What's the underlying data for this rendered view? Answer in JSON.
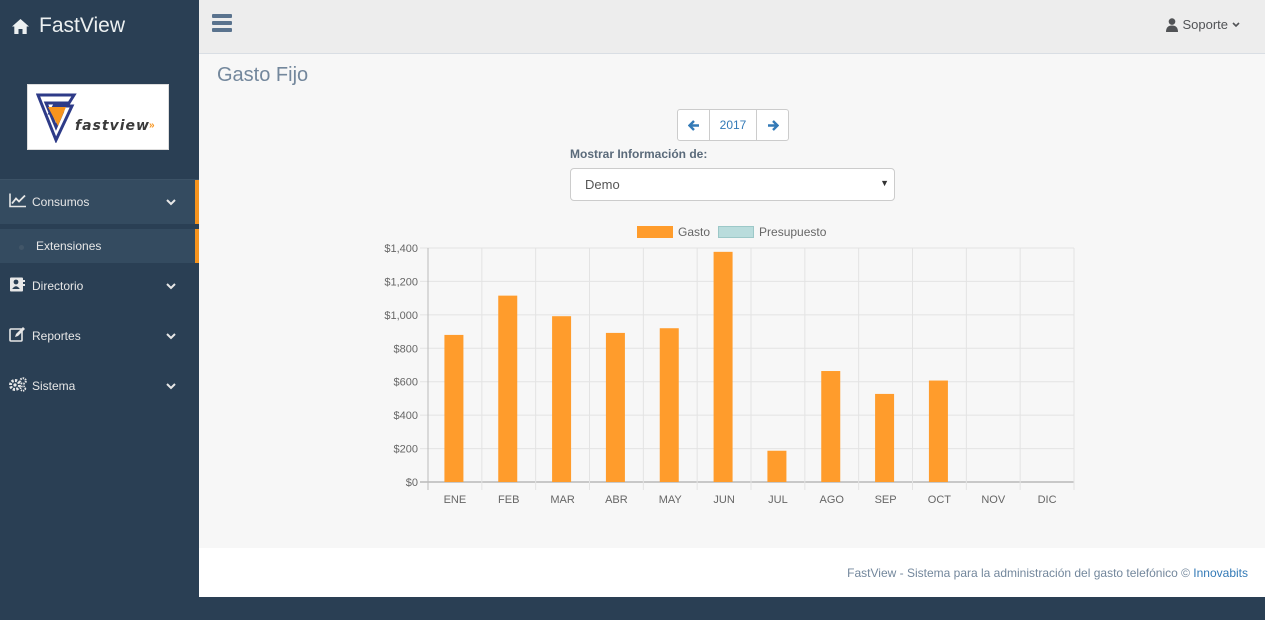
{
  "brand": {
    "title": "FastView"
  },
  "logo": {
    "text": "fastview",
    "arrows": "»"
  },
  "sidebar": {
    "items": [
      {
        "label": "Consumos",
        "icon": "chart-line-icon"
      },
      {
        "label": "Directorio",
        "icon": "address-book-icon"
      },
      {
        "label": "Reportes",
        "icon": "edit-icon"
      },
      {
        "label": "Sistema",
        "icon": "gears-icon"
      }
    ],
    "sub_item": {
      "label": "Extensiones"
    }
  },
  "topnav": {
    "user": "Soporte"
  },
  "main": {
    "page_title": "Gasto Fijo",
    "year": "2017",
    "filter_label": "Mostrar Información de:",
    "filter_value": "Demo"
  },
  "chart_data": {
    "type": "bar",
    "categories": [
      "ENE",
      "FEB",
      "MAR",
      "ABR",
      "MAY",
      "JUN",
      "JUL",
      "AGO",
      "SEP",
      "OCT",
      "NOV",
      "DIC"
    ],
    "series": [
      {
        "name": "Gasto",
        "color": "#ff9c2c",
        "values": [
          880,
          1115,
          992,
          892,
          920,
          1377,
          187,
          664,
          527,
          607,
          0,
          0
        ]
      },
      {
        "name": "Presupuesto",
        "color": "#b9dcdc",
        "values": [
          0,
          0,
          0,
          0,
          0,
          0,
          0,
          0,
          0,
          0,
          0,
          0
        ]
      }
    ],
    "y_ticks": [
      "$0",
      "$200",
      "$400",
      "$600",
      "$800",
      "$1,000",
      "$1,200",
      "$1,400"
    ],
    "ylim": [
      0,
      1400
    ],
    "grid": true,
    "legend": "top-center"
  },
  "footer": {
    "text": "FastView - Sistema para la administración del gasto telefónico © ",
    "link": "Innovabits"
  }
}
